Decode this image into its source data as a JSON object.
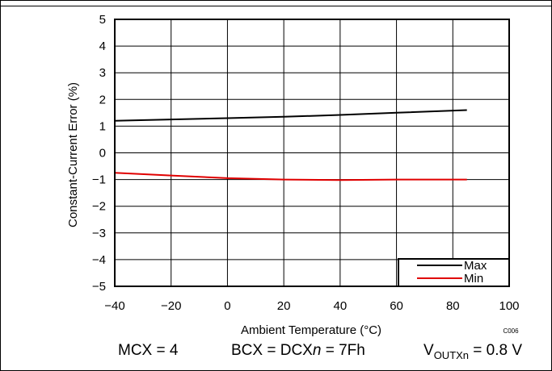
{
  "chart_data": {
    "type": "line",
    "xlabel": "Ambient Temperature (°C)",
    "ylabel": "Constant-Current Error (%)",
    "xlim": [
      -40,
      100
    ],
    "ylim": [
      -5,
      5
    ],
    "xticks": [
      "−40",
      "−20",
      "0",
      "20",
      "40",
      "60",
      "80",
      "100"
    ],
    "yticks": [
      "5",
      "4",
      "3",
      "2",
      "1",
      "0",
      "−1",
      "−2",
      "−3",
      "−4",
      "−5"
    ],
    "grid": true,
    "legend_position": "bottom-right",
    "series": [
      {
        "name": "Max",
        "color": "#000000",
        "x": [
          -40,
          -20,
          0,
          20,
          40,
          60,
          85
        ],
        "y": [
          1.2,
          1.25,
          1.3,
          1.35,
          1.42,
          1.5,
          1.6
        ]
      },
      {
        "name": "Min",
        "color": "#e00000",
        "x": [
          -40,
          -20,
          0,
          20,
          40,
          60,
          85
        ],
        "y": [
          -0.75,
          -0.85,
          -0.95,
          -1.0,
          -1.02,
          -1.0,
          -1.0
        ]
      }
    ],
    "figure_code": "C006"
  },
  "conditions": {
    "mcx": "MCX = 4",
    "bcx_prefix": "BCX = DCX",
    "bcx_italic": "n",
    "bcx_suffix": " = 7Fh",
    "vout_main": "V",
    "vout_sub": "OUTXn",
    "vout_value": " = 0.8 V"
  }
}
